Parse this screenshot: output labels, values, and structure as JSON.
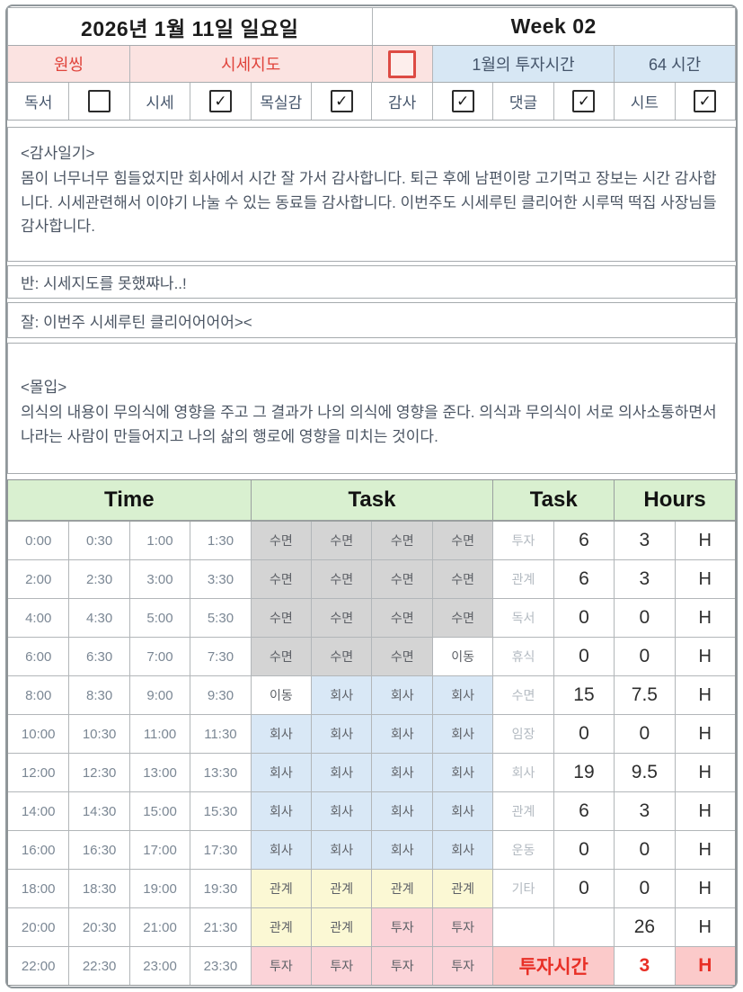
{
  "title": {
    "date": "2026년 1월 11일 일요일",
    "week": "Week 02"
  },
  "summary_bar": {
    "one_thing_label": "원씽",
    "one_thing_value": "시세지도",
    "checkbox_checked": false,
    "invest_label": "1월의 투자시간",
    "invest_value": "64 시간"
  },
  "habits": [
    {
      "label": "독서",
      "checked": false
    },
    {
      "label": "시세",
      "checked": true
    },
    {
      "label": "목실감",
      "checked": true
    },
    {
      "label": "감사",
      "checked": true
    },
    {
      "label": "댓글",
      "checked": true
    },
    {
      "label": "시트",
      "checked": true
    }
  ],
  "gratitude": {
    "title": "<감사일기>",
    "body": "몸이 너무너무 힘들었지만 회사에서 시간 잘 가서 감사합니다. 퇴근 후에 남편이랑 고기먹고 장보는 시간 감사합니다. 시세관련해서 이야기 나눌 수 있는 동료들 감사합니다. 이번주도 시세루틴 클리어한 시루떡 떡집 사장님들 감사합니다."
  },
  "bad_note": "반: 시세지도를 못했쨔나..!",
  "good_note": "잘: 이번주 시세루틴 클리어어어어><",
  "focus": {
    "title": "<몰입>",
    "body": "의식의 내용이 무의식에 영향을 주고 그 결과가 나의 의식에 영향을 준다. 의식과 무의식이 서로 의사소통하면서 나라는 사람이 만들어지고 나의 삶의 행로에 영향을 미치는 것이다."
  },
  "schedule": {
    "headers": {
      "time": "Time",
      "task_timeline": "Task",
      "task_summary": "Task",
      "hours": "Hours"
    },
    "rows": [
      {
        "times": [
          "0:00",
          "0:30",
          "1:00",
          "1:30"
        ],
        "tasks": [
          "수면",
          "수면",
          "수면",
          "수면"
        ],
        "summary": "투자",
        "count": "6",
        "hours": "3",
        "unit": "H",
        "is_total": false
      },
      {
        "times": [
          "2:00",
          "2:30",
          "3:00",
          "3:30"
        ],
        "tasks": [
          "수면",
          "수면",
          "수면",
          "수면"
        ],
        "summary": "관계",
        "count": "6",
        "hours": "3",
        "unit": "H",
        "is_total": false
      },
      {
        "times": [
          "4:00",
          "4:30",
          "5:00",
          "5:30"
        ],
        "tasks": [
          "수면",
          "수면",
          "수면",
          "수면"
        ],
        "summary": "독서",
        "count": "0",
        "hours": "0",
        "unit": "H",
        "is_total": false
      },
      {
        "times": [
          "6:00",
          "6:30",
          "7:00",
          "7:30"
        ],
        "tasks": [
          "수면",
          "수면",
          "수면",
          "이동"
        ],
        "summary": "휴식",
        "count": "0",
        "hours": "0",
        "unit": "H",
        "is_total": false
      },
      {
        "times": [
          "8:00",
          "8:30",
          "9:00",
          "9:30"
        ],
        "tasks": [
          "이동",
          "회사",
          "회사",
          "회사"
        ],
        "summary": "수면",
        "count": "15",
        "hours": "7.5",
        "unit": "H",
        "is_total": false
      },
      {
        "times": [
          "10:00",
          "10:30",
          "11:00",
          "11:30"
        ],
        "tasks": [
          "회사",
          "회사",
          "회사",
          "회사"
        ],
        "summary": "임장",
        "count": "0",
        "hours": "0",
        "unit": "H",
        "is_total": false
      },
      {
        "times": [
          "12:00",
          "12:30",
          "13:00",
          "13:30"
        ],
        "tasks": [
          "회사",
          "회사",
          "회사",
          "회사"
        ],
        "summary": "회사",
        "count": "19",
        "hours": "9.5",
        "unit": "H",
        "is_total": false
      },
      {
        "times": [
          "14:00",
          "14:30",
          "15:00",
          "15:30"
        ],
        "tasks": [
          "회사",
          "회사",
          "회사",
          "회사"
        ],
        "summary": "관계",
        "count": "6",
        "hours": "3",
        "unit": "H",
        "is_total": false
      },
      {
        "times": [
          "16:00",
          "16:30",
          "17:00",
          "17:30"
        ],
        "tasks": [
          "회사",
          "회사",
          "회사",
          "회사"
        ],
        "summary": "운동",
        "count": "0",
        "hours": "0",
        "unit": "H",
        "is_total": false
      },
      {
        "times": [
          "18:00",
          "18:30",
          "19:00",
          "19:30"
        ],
        "tasks": [
          "관계",
          "관계",
          "관계",
          "관계"
        ],
        "summary": "기타",
        "count": "0",
        "hours": "0",
        "unit": "H",
        "is_total": false
      },
      {
        "times": [
          "20:00",
          "20:30",
          "21:00",
          "21:30"
        ],
        "tasks": [
          "관계",
          "관계",
          "투자",
          "투자"
        ],
        "summary": "",
        "count": "",
        "hours": "26",
        "unit": "H",
        "is_total": false
      },
      {
        "times": [
          "22:00",
          "22:30",
          "23:00",
          "23:30"
        ],
        "tasks": [
          "투자",
          "투자",
          "투자",
          "투자"
        ],
        "summary": "투자시간",
        "count": null,
        "hours": "3",
        "unit": "H",
        "is_total": true
      }
    ]
  },
  "task_color_map": {
    "수면": "#d4d4d4",
    "이동": "#ffffff",
    "회사": "#d9e8f6",
    "관계": "#fbf8d4",
    "투자": "#fbd3d8"
  },
  "colors": {
    "accent_red": "#e0443c",
    "slate_text": "#44546a",
    "pink_bg": "#fbe3e1",
    "blue_bg": "#d7e7f4",
    "green_header_bg": "#d9f0d0",
    "total_pink_bg": "#fbcaca",
    "total_red_text": "#e82f26"
  },
  "check_glyph": "✓"
}
